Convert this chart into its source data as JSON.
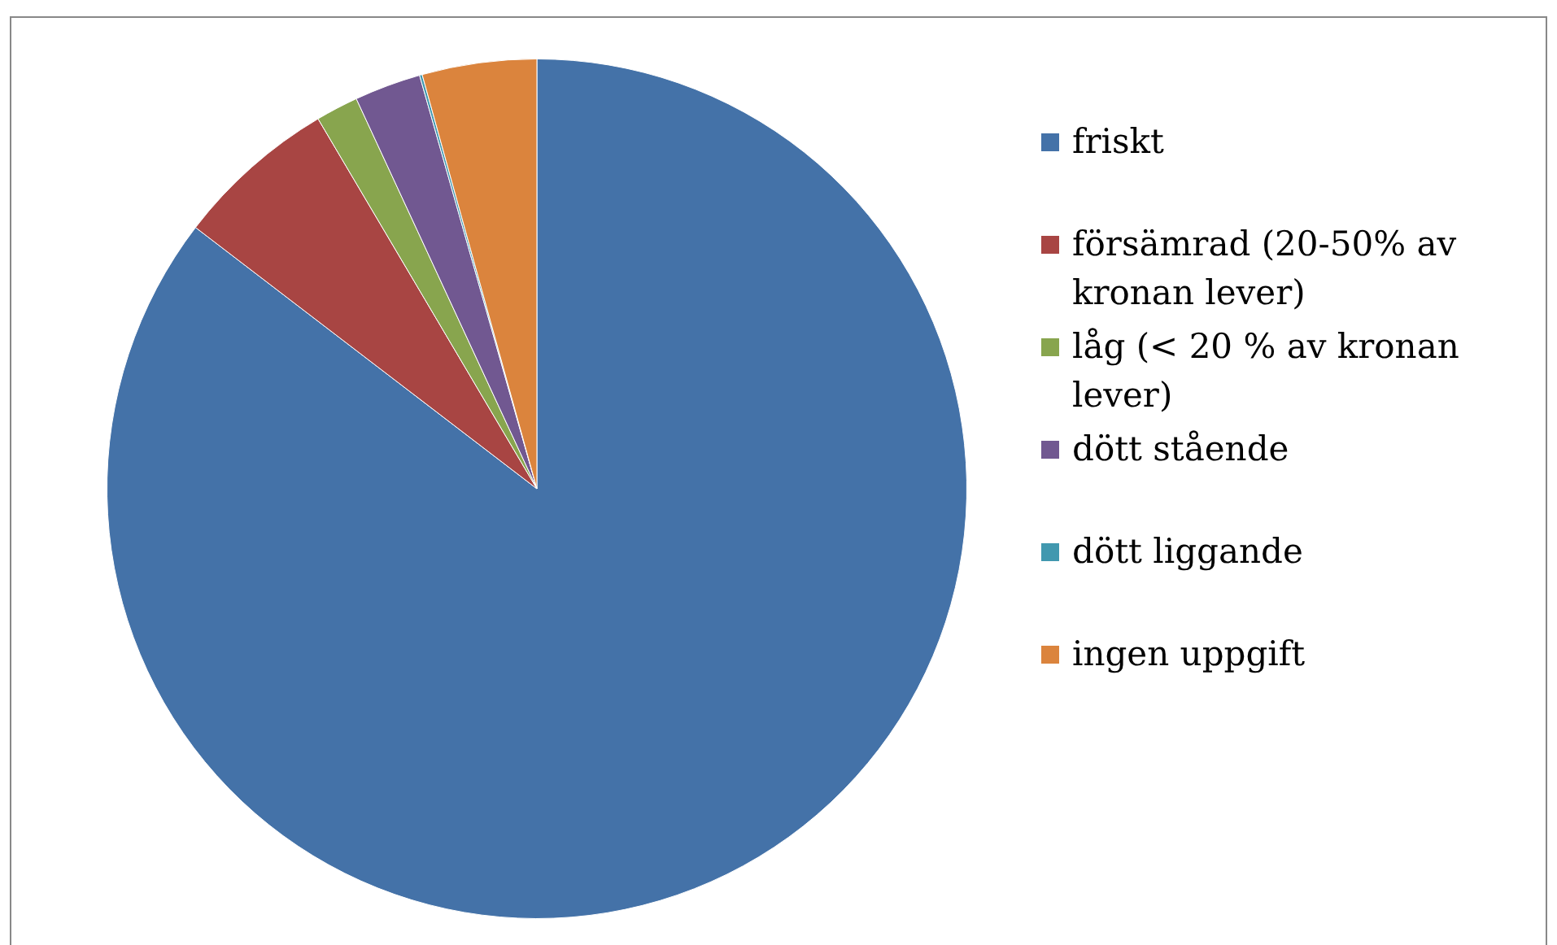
{
  "chart_data": {
    "type": "pie",
    "categories": [
      "friskt",
      "försämrad (20-50% av kronan lever)",
      "låg (< 20 % av kronan lever)",
      "dött stående",
      "dött liggande",
      "ingen uppgift"
    ],
    "values": [
      85.4,
      6.1,
      1.6,
      2.5,
      0.1,
      4.3
    ],
    "colors": [
      "#4472a8",
      "#a84543",
      "#88a54e",
      "#715891",
      "#4198af",
      "#db843d"
    ],
    "legend": "right"
  }
}
